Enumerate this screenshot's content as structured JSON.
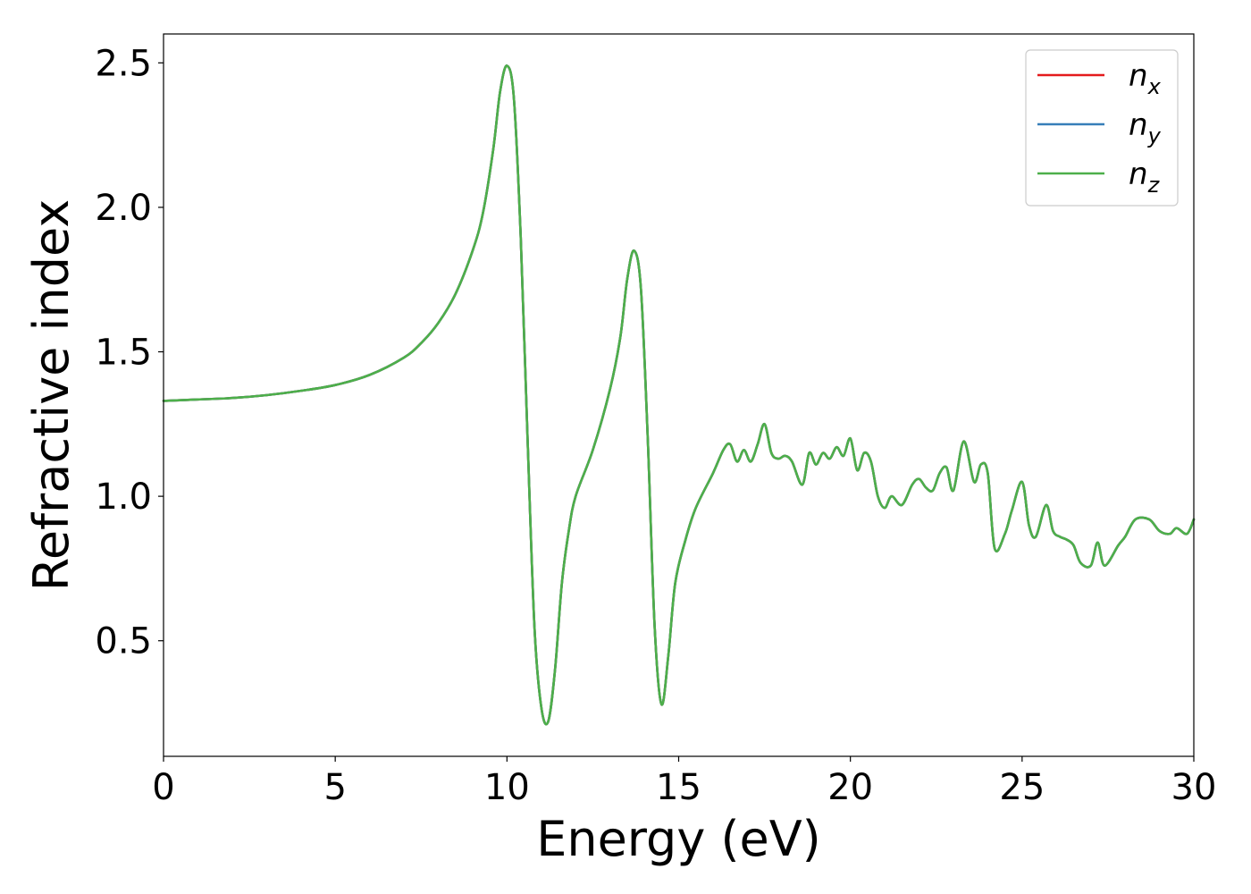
{
  "chart_data": {
    "type": "line",
    "title": "",
    "xlabel": "Energy (eV)",
    "ylabel": "Refractive index",
    "xlim": [
      0,
      30
    ],
    "ylim": [
      0.1,
      2.6
    ],
    "xticks": [
      0,
      5,
      10,
      15,
      20,
      25,
      30
    ],
    "xtick_labels": [
      "0",
      "5",
      "10",
      "15",
      "20",
      "25",
      "30"
    ],
    "yticks": [
      0.5,
      1.0,
      1.5,
      2.0,
      2.5
    ],
    "ytick_labels": [
      "0.5",
      "1.0",
      "1.5",
      "2.0",
      "2.5"
    ],
    "grid": false,
    "legend_position": "top-right",
    "x": [
      0,
      1,
      2,
      3,
      4,
      5,
      6,
      7,
      7.5,
      8,
      8.5,
      9,
      9.3,
      9.6,
      9.8,
      10.0,
      10.2,
      10.4,
      10.6,
      10.8,
      11.0,
      11.2,
      11.4,
      11.6,
      11.8,
      12.0,
      12.5,
      13.0,
      13.3,
      13.5,
      13.7,
      13.9,
      14.1,
      14.3,
      14.5,
      14.7,
      14.9,
      15.2,
      15.5,
      16.0,
      16.3,
      16.5,
      16.7,
      16.9,
      17.1,
      17.3,
      17.5,
      17.7,
      17.9,
      18.1,
      18.3,
      18.6,
      18.8,
      19.0,
      19.2,
      19.4,
      19.6,
      19.8,
      20.0,
      20.2,
      20.4,
      20.6,
      20.8,
      21.0,
      21.2,
      21.5,
      21.8,
      22.0,
      22.2,
      22.4,
      22.6,
      22.8,
      23.0,
      23.3,
      23.6,
      23.8,
      24.0,
      24.2,
      24.5,
      24.7,
      25.0,
      25.2,
      25.4,
      25.7,
      25.9,
      26.1,
      26.3,
      26.5,
      26.7,
      27.0,
      27.2,
      27.4,
      27.8,
      28.0,
      28.3,
      28.7,
      29.0,
      29.3,
      29.5,
      29.8,
      30.0
    ],
    "series": [
      {
        "name": "n_x",
        "color": "#e41a1c",
        "values": [
          1.33,
          1.335,
          1.34,
          1.35,
          1.365,
          1.385,
          1.42,
          1.48,
          1.53,
          1.6,
          1.7,
          1.85,
          1.98,
          2.2,
          2.4,
          2.49,
          2.38,
          1.9,
          1.2,
          0.55,
          0.27,
          0.22,
          0.4,
          0.7,
          0.88,
          1.0,
          1.16,
          1.37,
          1.55,
          1.75,
          1.85,
          1.72,
          1.2,
          0.55,
          0.28,
          0.45,
          0.7,
          0.85,
          0.96,
          1.08,
          1.16,
          1.18,
          1.12,
          1.16,
          1.12,
          1.18,
          1.25,
          1.15,
          1.13,
          1.14,
          1.12,
          1.04,
          1.15,
          1.11,
          1.15,
          1.13,
          1.17,
          1.14,
          1.2,
          1.09,
          1.15,
          1.12,
          1.0,
          0.96,
          1.0,
          0.97,
          1.04,
          1.06,
          1.03,
          1.02,
          1.08,
          1.1,
          1.02,
          1.19,
          1.05,
          1.11,
          1.08,
          0.82,
          0.87,
          0.95,
          1.05,
          0.9,
          0.86,
          0.97,
          0.88,
          0.86,
          0.85,
          0.83,
          0.77,
          0.76,
          0.84,
          0.76,
          0.83,
          0.86,
          0.92,
          0.92,
          0.88,
          0.87,
          0.89,
          0.87,
          0.92
        ]
      },
      {
        "name": "n_y",
        "color": "#377eb8",
        "values": [
          1.33,
          1.335,
          1.34,
          1.35,
          1.365,
          1.385,
          1.42,
          1.48,
          1.53,
          1.6,
          1.7,
          1.85,
          1.98,
          2.2,
          2.4,
          2.49,
          2.38,
          1.9,
          1.2,
          0.55,
          0.27,
          0.22,
          0.4,
          0.7,
          0.88,
          1.0,
          1.16,
          1.37,
          1.55,
          1.75,
          1.85,
          1.72,
          1.2,
          0.55,
          0.28,
          0.45,
          0.7,
          0.85,
          0.96,
          1.08,
          1.16,
          1.18,
          1.12,
          1.16,
          1.12,
          1.18,
          1.25,
          1.15,
          1.13,
          1.14,
          1.12,
          1.04,
          1.15,
          1.11,
          1.15,
          1.13,
          1.17,
          1.14,
          1.2,
          1.09,
          1.15,
          1.12,
          1.0,
          0.96,
          1.0,
          0.97,
          1.04,
          1.06,
          1.03,
          1.02,
          1.08,
          1.1,
          1.02,
          1.19,
          1.05,
          1.11,
          1.08,
          0.82,
          0.87,
          0.95,
          1.05,
          0.9,
          0.86,
          0.97,
          0.88,
          0.86,
          0.85,
          0.83,
          0.77,
          0.76,
          0.84,
          0.76,
          0.83,
          0.86,
          0.92,
          0.92,
          0.88,
          0.87,
          0.89,
          0.87,
          0.92
        ]
      },
      {
        "name": "n_z",
        "color": "#4daf4a",
        "values": [
          1.33,
          1.335,
          1.34,
          1.35,
          1.365,
          1.385,
          1.42,
          1.48,
          1.53,
          1.6,
          1.7,
          1.85,
          1.98,
          2.2,
          2.4,
          2.49,
          2.38,
          1.9,
          1.2,
          0.55,
          0.27,
          0.22,
          0.4,
          0.7,
          0.88,
          1.0,
          1.16,
          1.37,
          1.55,
          1.75,
          1.85,
          1.72,
          1.2,
          0.55,
          0.28,
          0.45,
          0.7,
          0.85,
          0.96,
          1.08,
          1.16,
          1.18,
          1.12,
          1.16,
          1.12,
          1.18,
          1.25,
          1.15,
          1.13,
          1.14,
          1.12,
          1.04,
          1.15,
          1.11,
          1.15,
          1.13,
          1.17,
          1.14,
          1.2,
          1.09,
          1.15,
          1.12,
          1.0,
          0.96,
          1.0,
          0.97,
          1.04,
          1.06,
          1.03,
          1.02,
          1.08,
          1.1,
          1.02,
          1.19,
          1.05,
          1.11,
          1.08,
          0.82,
          0.87,
          0.95,
          1.05,
          0.9,
          0.86,
          0.97,
          0.88,
          0.86,
          0.85,
          0.83,
          0.77,
          0.76,
          0.84,
          0.76,
          0.83,
          0.86,
          0.92,
          0.92,
          0.88,
          0.87,
          0.89,
          0.87,
          0.92
        ]
      }
    ],
    "legend": [
      {
        "base": "n",
        "sub": "x",
        "color": "#e41a1c"
      },
      {
        "base": "n",
        "sub": "y",
        "color": "#377eb8"
      },
      {
        "base": "n",
        "sub": "z",
        "color": "#4daf4a"
      }
    ]
  }
}
